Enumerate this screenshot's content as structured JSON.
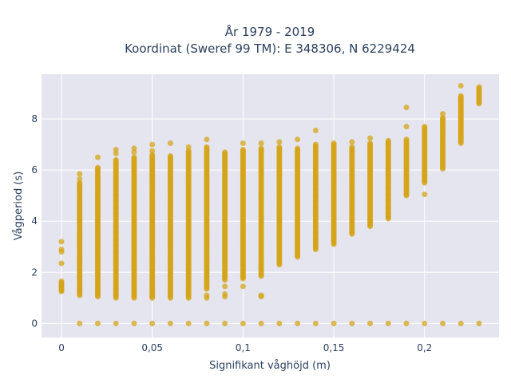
{
  "chart_data": {
    "type": "scatter",
    "title_line1": "År 1979 - 2019",
    "title_line2": "Koordinat (Sweref 99 TM): E 348306, N 6229424",
    "xlabel": "Signifikant våghöjd (m)",
    "ylabel": "Vågperiod (s)",
    "xlim": [
      -0.011,
      0.241
    ],
    "ylim": [
      -0.55,
      9.75
    ],
    "x_ticks": [
      0,
      0.05,
      0.1,
      0.15,
      0.2
    ],
    "x_tick_labels": [
      "0",
      "0,05",
      "0,1",
      "0,15",
      "0,2"
    ],
    "y_ticks": [
      0,
      2,
      4,
      6,
      8
    ],
    "y_tick_labels": [
      "0",
      "2",
      "4",
      "6",
      "8"
    ],
    "plot_bg": "#e5e5f0",
    "marker_color": "#d4a418",
    "series": [
      {
        "columns": [
          {
            "x": 0,
            "ymin": 1.25,
            "ymax": 1.65,
            "extra": [
              2.35,
              2.8,
              2.9,
              3.2
            ],
            "zero": false
          },
          {
            "x": 0.01,
            "ymin": 1.1,
            "ymax": 5.5,
            "extra": [
              5.65,
              5.85
            ],
            "zero": true
          },
          {
            "x": 0.02,
            "ymin": 1.05,
            "ymax": 6.1,
            "extra": [
              6.5
            ],
            "zero": true
          },
          {
            "x": 0.03,
            "ymin": 1.0,
            "ymax": 6.4,
            "extra": [
              6.65,
              6.8
            ],
            "zero": true
          },
          {
            "x": 0.04,
            "ymin": 1.0,
            "ymax": 6.5,
            "extra": [
              6.7,
              6.85
            ],
            "zero": true
          },
          {
            "x": 0.05,
            "ymin": 1.0,
            "ymax": 6.6,
            "extra": [
              6.75,
              7.0
            ],
            "zero": true
          },
          {
            "x": 0.06,
            "ymin": 1.0,
            "ymax": 6.55,
            "extra": [
              7.05
            ],
            "zero": true
          },
          {
            "x": 0.07,
            "ymin": 1.0,
            "ymax": 6.75,
            "extra": [
              6.9
            ],
            "zero": true
          },
          {
            "x": 0.08,
            "ymin": 1.35,
            "ymax": 6.9,
            "extra": [
              1.1,
              1.0,
              7.2
            ],
            "zero": true
          },
          {
            "x": 0.09,
            "ymin": 1.7,
            "ymax": 6.7,
            "extra": [
              1.45,
              1.15,
              1.05
            ],
            "zero": true
          },
          {
            "x": 0.1,
            "ymin": 1.75,
            "ymax": 6.8,
            "extra": [
              1.45,
              7.05
            ],
            "zero": true
          },
          {
            "x": 0.11,
            "ymin": 1.85,
            "ymax": 6.85,
            "extra": [
              1.1,
              1.05,
              7.05
            ],
            "zero": true
          },
          {
            "x": 0.12,
            "ymin": 2.3,
            "ymax": 6.9,
            "extra": [
              7.1
            ],
            "zero": true
          },
          {
            "x": 0.13,
            "ymin": 2.6,
            "ymax": 6.85,
            "extra": [
              7.2
            ],
            "zero": true
          },
          {
            "x": 0.14,
            "ymin": 2.9,
            "ymax": 7.0,
            "extra": [
              7.55
            ],
            "zero": true
          },
          {
            "x": 0.15,
            "ymin": 3.1,
            "ymax": 7.05,
            "extra": [],
            "zero": true
          },
          {
            "x": 0.16,
            "ymin": 3.5,
            "ymax": 6.9,
            "extra": [
              7.1
            ],
            "zero": true
          },
          {
            "x": 0.17,
            "ymin": 3.8,
            "ymax": 7.05,
            "extra": [
              7.25
            ],
            "zero": true
          },
          {
            "x": 0.18,
            "ymin": 4.1,
            "ymax": 7.15,
            "extra": [],
            "zero": true
          },
          {
            "x": 0.19,
            "ymin": 5.0,
            "ymax": 7.2,
            "extra": [
              7.7,
              8.45
            ],
            "zero": true
          },
          {
            "x": 0.2,
            "ymin": 5.5,
            "ymax": 7.7,
            "extra": [
              5.05
            ],
            "zero": true
          },
          {
            "x": 0.21,
            "ymin": 6.05,
            "ymax": 8.05,
            "extra": [
              8.2
            ],
            "zero": true
          },
          {
            "x": 0.22,
            "ymin": 7.05,
            "ymax": 8.9,
            "extra": [
              9.3
            ],
            "zero": true
          },
          {
            "x": 0.23,
            "ymin": 8.6,
            "ymax": 9.25,
            "extra": [],
            "zero": true
          }
        ]
      }
    ]
  }
}
